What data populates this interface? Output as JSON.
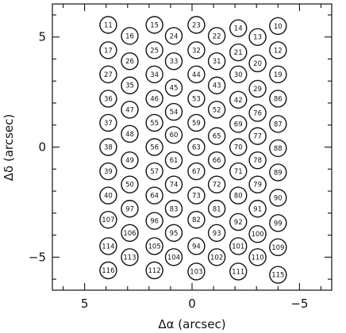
{
  "chart_data": {
    "type": "scatter",
    "title": "",
    "xlabel": "Δα (arcsec)",
    "ylabel": "Δδ (arcsec)",
    "xlim": [
      6.5,
      -6.5
    ],
    "ylim": [
      -6.5,
      6.5
    ],
    "x_axis_reversed": true,
    "xticks": [
      5,
      0,
      -5
    ],
    "yticks": [
      5,
      0,
      -5
    ],
    "grid": false,
    "marker": "open circle with fiber number",
    "points": [
      {
        "label": "11",
        "x": 3.9,
        "y": 5.55
      },
      {
        "label": "16",
        "x": 2.9,
        "y": 5.05
      },
      {
        "label": "15",
        "x": 1.75,
        "y": 5.55
      },
      {
        "label": "24",
        "x": 0.85,
        "y": 5.05
      },
      {
        "label": "23",
        "x": -0.2,
        "y": 5.55
      },
      {
        "label": "22",
        "x": -1.15,
        "y": 5.05
      },
      {
        "label": "14",
        "x": -2.15,
        "y": 5.4
      },
      {
        "label": "13",
        "x": -3.05,
        "y": 5.0
      },
      {
        "label": "10",
        "x": -4.0,
        "y": 5.5
      },
      {
        "label": "17",
        "x": 3.9,
        "y": 4.4
      },
      {
        "label": "25",
        "x": 1.75,
        "y": 4.4
      },
      {
        "label": "32",
        "x": -0.2,
        "y": 4.4
      },
      {
        "label": "21",
        "x": -2.15,
        "y": 4.3
      },
      {
        "label": "12",
        "x": -4.0,
        "y": 4.4
      },
      {
        "label": "26",
        "x": 2.9,
        "y": 3.9
      },
      {
        "label": "33",
        "x": 0.85,
        "y": 3.9
      },
      {
        "label": "31",
        "x": -1.15,
        "y": 3.9
      },
      {
        "label": "20",
        "x": -3.05,
        "y": 3.8
      },
      {
        "label": "27",
        "x": 3.9,
        "y": 3.3
      },
      {
        "label": "34",
        "x": 1.75,
        "y": 3.3
      },
      {
        "label": "44",
        "x": -0.2,
        "y": 3.3
      },
      {
        "label": "30",
        "x": -2.15,
        "y": 3.3
      },
      {
        "label": "19",
        "x": -4.0,
        "y": 3.3
      },
      {
        "label": "35",
        "x": 2.9,
        "y": 2.8
      },
      {
        "label": "45",
        "x": 0.85,
        "y": 2.7
      },
      {
        "label": "43",
        "x": -1.15,
        "y": 2.8
      },
      {
        "label": "29",
        "x": -3.05,
        "y": 2.65
      },
      {
        "label": "36",
        "x": 3.9,
        "y": 2.2
      },
      {
        "label": "46",
        "x": 1.75,
        "y": 2.2
      },
      {
        "label": "53",
        "x": -0.2,
        "y": 2.2
      },
      {
        "label": "42",
        "x": -2.15,
        "y": 2.15
      },
      {
        "label": "86",
        "x": -4.0,
        "y": 2.2
      },
      {
        "label": "47",
        "x": 2.9,
        "y": 1.7
      },
      {
        "label": "54",
        "x": 0.85,
        "y": 1.6
      },
      {
        "label": "52",
        "x": -1.15,
        "y": 1.7
      },
      {
        "label": "76",
        "x": -3.05,
        "y": 1.55
      },
      {
        "label": "37",
        "x": 3.9,
        "y": 1.1
      },
      {
        "label": "55",
        "x": 1.75,
        "y": 1.1
      },
      {
        "label": "59",
        "x": -0.2,
        "y": 1.1
      },
      {
        "label": "69",
        "x": -2.15,
        "y": 1.05
      },
      {
        "label": "87",
        "x": -4.0,
        "y": 1.05
      },
      {
        "label": "48",
        "x": 2.9,
        "y": 0.6
      },
      {
        "label": "60",
        "x": 0.85,
        "y": 0.55
      },
      {
        "label": "65",
        "x": -1.15,
        "y": 0.5
      },
      {
        "label": "77",
        "x": -3.05,
        "y": 0.5
      },
      {
        "label": "38",
        "x": 3.9,
        "y": 0.0
      },
      {
        "label": "56",
        "x": 1.75,
        "y": 0.0
      },
      {
        "label": "63",
        "x": -0.2,
        "y": 0.0
      },
      {
        "label": "70",
        "x": -2.15,
        "y": 0.0
      },
      {
        "label": "88",
        "x": -4.0,
        "y": -0.05
      },
      {
        "label": "49",
        "x": 2.9,
        "y": -0.6
      },
      {
        "label": "61",
        "x": 0.85,
        "y": -0.6
      },
      {
        "label": "66",
        "x": -1.15,
        "y": -0.6
      },
      {
        "label": "78",
        "x": -3.05,
        "y": -0.6
      },
      {
        "label": "39",
        "x": 3.9,
        "y": -1.1
      },
      {
        "label": "57",
        "x": 1.75,
        "y": -1.1
      },
      {
        "label": "67",
        "x": -0.2,
        "y": -1.1
      },
      {
        "label": "71",
        "x": -2.15,
        "y": -1.1
      },
      {
        "label": "89",
        "x": -4.0,
        "y": -1.15
      },
      {
        "label": "50",
        "x": 2.9,
        "y": -1.7
      },
      {
        "label": "74",
        "x": 0.85,
        "y": -1.7
      },
      {
        "label": "72",
        "x": -1.15,
        "y": -1.7
      },
      {
        "label": "79",
        "x": -3.05,
        "y": -1.7
      },
      {
        "label": "40",
        "x": 3.9,
        "y": -2.2
      },
      {
        "label": "64",
        "x": 1.75,
        "y": -2.2
      },
      {
        "label": "73",
        "x": -0.2,
        "y": -2.2
      },
      {
        "label": "80",
        "x": -2.15,
        "y": -2.2
      },
      {
        "label": "90",
        "x": -4.0,
        "y": -2.3
      },
      {
        "label": "97",
        "x": 2.9,
        "y": -2.8
      },
      {
        "label": "83",
        "x": 0.85,
        "y": -2.8
      },
      {
        "label": "81",
        "x": -1.15,
        "y": -2.8
      },
      {
        "label": "91",
        "x": -3.05,
        "y": -2.8
      },
      {
        "label": "107",
        "x": 3.9,
        "y": -3.3
      },
      {
        "label": "96",
        "x": 1.75,
        "y": -3.35
      },
      {
        "label": "82",
        "x": -0.2,
        "y": -3.3
      },
      {
        "label": "92",
        "x": -2.15,
        "y": -3.4
      },
      {
        "label": "99",
        "x": -4.0,
        "y": -3.45
      },
      {
        "label": "106",
        "x": 2.9,
        "y": -3.9
      },
      {
        "label": "95",
        "x": 0.85,
        "y": -3.9
      },
      {
        "label": "93",
        "x": -1.15,
        "y": -3.9
      },
      {
        "label": "100",
        "x": -3.05,
        "y": -3.95
      },
      {
        "label": "114",
        "x": 3.9,
        "y": -4.5
      },
      {
        "label": "105",
        "x": 1.75,
        "y": -4.5
      },
      {
        "label": "94",
        "x": -0.2,
        "y": -4.5
      },
      {
        "label": "101",
        "x": -2.15,
        "y": -4.5
      },
      {
        "label": "109",
        "x": -4.0,
        "y": -4.55
      },
      {
        "label": "113",
        "x": 2.9,
        "y": -5.0
      },
      {
        "label": "104",
        "x": 0.85,
        "y": -5.0
      },
      {
        "label": "102",
        "x": -1.15,
        "y": -5.0
      },
      {
        "label": "110",
        "x": -3.05,
        "y": -5.0
      },
      {
        "label": "116",
        "x": 3.9,
        "y": -5.6
      },
      {
        "label": "112",
        "x": 1.75,
        "y": -5.6
      },
      {
        "label": "103",
        "x": -0.2,
        "y": -5.65
      },
      {
        "label": "111",
        "x": -2.15,
        "y": -5.65
      },
      {
        "label": "115",
        "x": -4.0,
        "y": -5.8
      }
    ]
  }
}
